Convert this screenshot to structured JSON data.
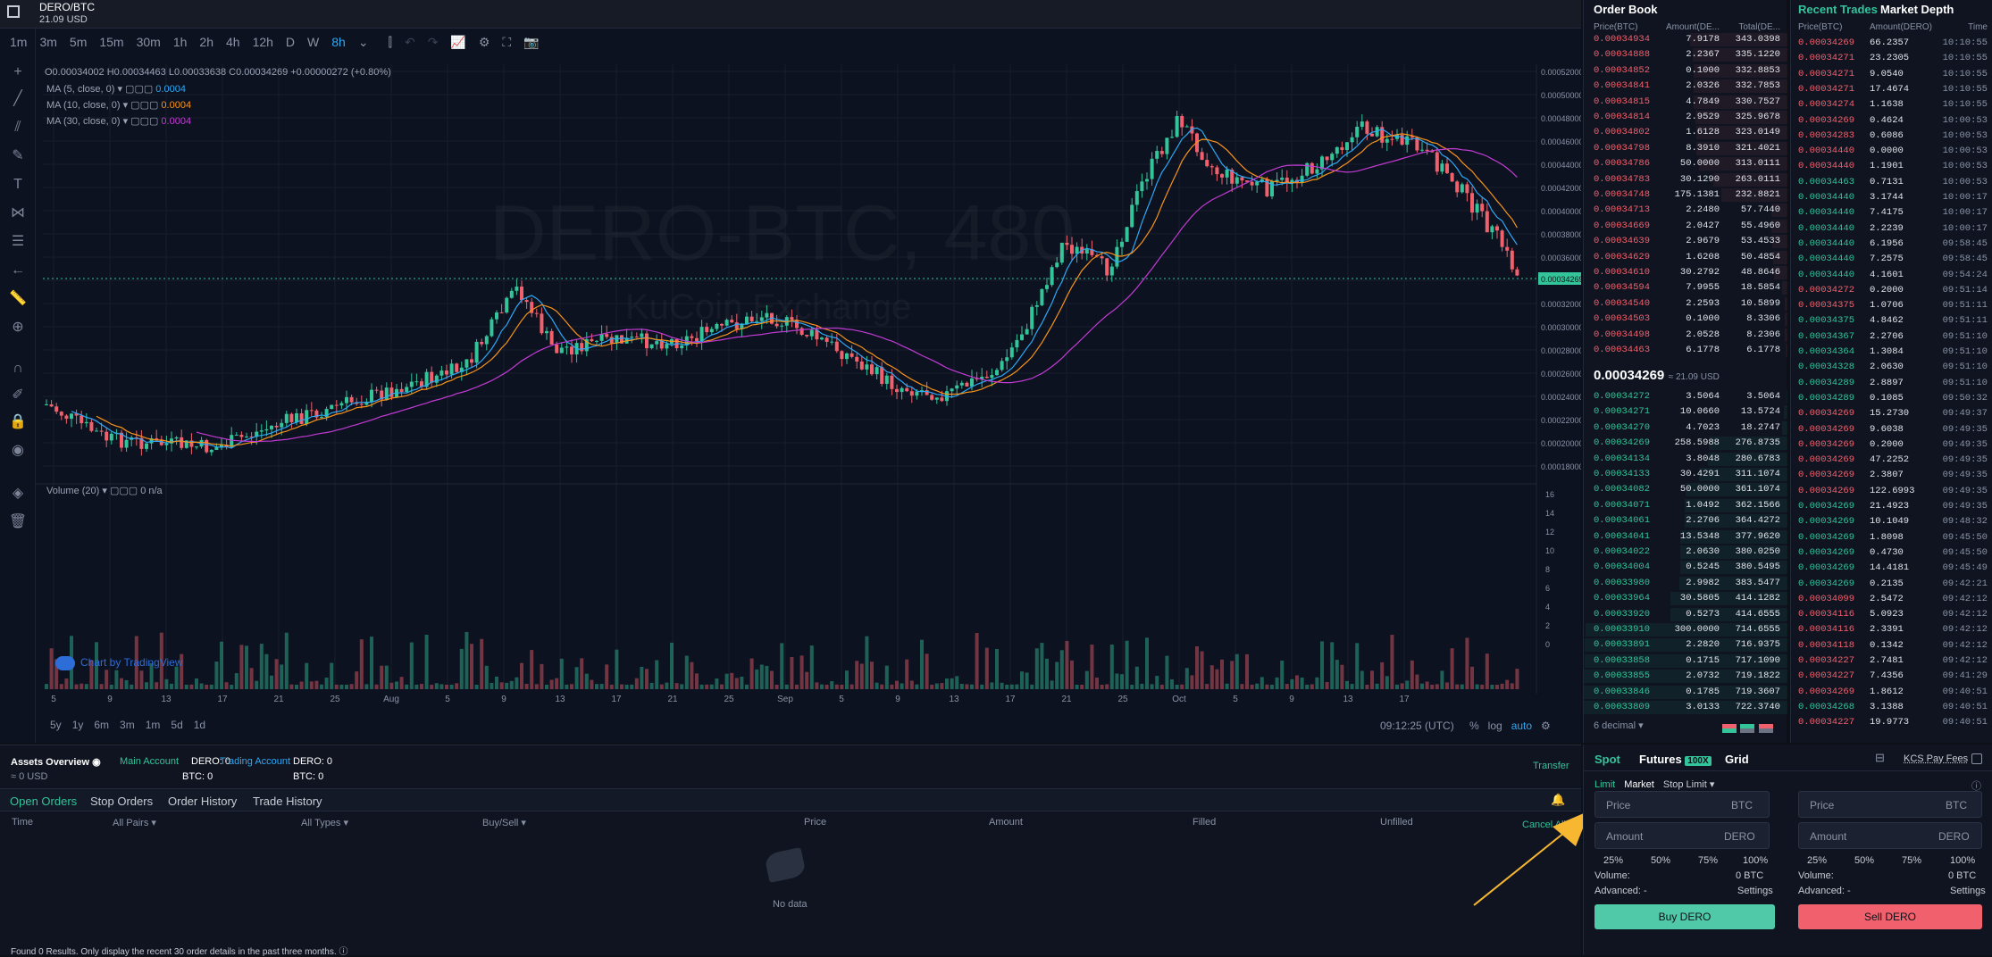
{
  "top": {
    "pair": "DERO/BTC",
    "price_usd": "21.09 USD"
  },
  "timeframes": [
    "1m",
    "3m",
    "5m",
    "15m",
    "30m",
    "1h",
    "2h",
    "4h",
    "12h",
    "D",
    "W",
    "8h"
  ],
  "active_tf": "8h",
  "legend": {
    "ohlc": "O0.00034002  H0.00034463  L0.00033638  C0.00034269  +0.00000272 (+0.80%)",
    "ma5_label": "MA (5, close, 0)",
    "ma5_val": "0.0004",
    "ma10_label": "MA (10, close, 0)",
    "ma10_val": "0.0004",
    "ma30_label": "MA (30, close, 0)",
    "ma30_val": "0.0004",
    "volume_label": "Volume (20)",
    "volume_val": "0  n/a"
  },
  "watermark": {
    "main": "DERO-BTC, 480",
    "sub": "KuCoin Exchange"
  },
  "price_axis": [
    "0.00052000",
    "0.00050000",
    "0.00048000",
    "0.00046000",
    "0.00044000",
    "0.00042000",
    "0.00040000",
    "0.00038000",
    "0.00036000",
    "0.00034269",
    "0.00032000",
    "0.00030000",
    "0.00028000",
    "0.00026000",
    "0.00024000",
    "0.00022000",
    "0.00020000",
    "0.00018000"
  ],
  "vol_axis": [
    "16",
    "14",
    "12",
    "10",
    "8",
    "6",
    "4",
    "2",
    "0"
  ],
  "date_axis": [
    "5",
    "9",
    "13",
    "17",
    "21",
    "25",
    "Aug",
    "5",
    "9",
    "13",
    "17",
    "21",
    "25",
    "Sep",
    "5",
    "9",
    "13",
    "17",
    "21",
    "25",
    "Oct",
    "5",
    "9",
    "13",
    "17"
  ],
  "current_price_tag": "0.00034269",
  "tradingview": "Chart by TradingView",
  "range_btns": [
    "5y",
    "1y",
    "6m",
    "3m",
    "1m",
    "5d",
    "1d"
  ],
  "time_readout": "09:12:25 (UTC)",
  "scale_opts": [
    "%",
    "log",
    "auto"
  ],
  "orderbook": {
    "title": "Order Book",
    "cols": [
      "Price(BTC)",
      "Amount(DE...",
      "Total(DE..."
    ],
    "asks": [
      [
        "0.00034934",
        "7.9178",
        "343.0398"
      ],
      [
        "0.00034888",
        "2.2367",
        "335.1220"
      ],
      [
        "0.00034852",
        "0.1000",
        "332.8853"
      ],
      [
        "0.00034841",
        "2.0326",
        "332.7853"
      ],
      [
        "0.00034815",
        "4.7849",
        "330.7527"
      ],
      [
        "0.00034814",
        "2.9529",
        "325.9678"
      ],
      [
        "0.00034802",
        "1.6128",
        "323.0149"
      ],
      [
        "0.00034798",
        "8.3910",
        "321.4021"
      ],
      [
        "0.00034786",
        "50.0000",
        "313.0111"
      ],
      [
        "0.00034783",
        "30.1290",
        "263.0111"
      ],
      [
        "0.00034748",
        "175.1381",
        "232.8821"
      ],
      [
        "0.00034713",
        "2.2480",
        "57.7440"
      ],
      [
        "0.00034669",
        "2.0427",
        "55.4960"
      ],
      [
        "0.00034639",
        "2.9679",
        "53.4533"
      ],
      [
        "0.00034629",
        "1.6208",
        "50.4854"
      ],
      [
        "0.00034610",
        "30.2792",
        "48.8646"
      ],
      [
        "0.00034594",
        "7.9955",
        "18.5854"
      ],
      [
        "0.00034540",
        "2.2593",
        "10.5899"
      ],
      [
        "0.00034503",
        "0.1000",
        "8.3306"
      ],
      [
        "0.00034498",
        "2.0528",
        "8.2306"
      ],
      [
        "0.00034463",
        "6.1778",
        "6.1778"
      ]
    ],
    "mid_price": "0.00034269",
    "mid_usd": "≈ 21.09 USD",
    "bids": [
      [
        "0.00034272",
        "3.5064",
        "3.5064"
      ],
      [
        "0.00034271",
        "10.0660",
        "13.5724"
      ],
      [
        "0.00034270",
        "4.7023",
        "18.2747"
      ],
      [
        "0.00034269",
        "258.5988",
        "276.8735"
      ],
      [
        "0.00034134",
        "3.8048",
        "280.6783"
      ],
      [
        "0.00034133",
        "30.4291",
        "311.1074"
      ],
      [
        "0.00034082",
        "50.0000",
        "361.1074"
      ],
      [
        "0.00034071",
        "1.0492",
        "362.1566"
      ],
      [
        "0.00034061",
        "2.2706",
        "364.4272"
      ],
      [
        "0.00034041",
        "13.5348",
        "377.9620"
      ],
      [
        "0.00034022",
        "2.0630",
        "380.0250"
      ],
      [
        "0.00034004",
        "0.5245",
        "380.5495"
      ],
      [
        "0.00033980",
        "2.9982",
        "383.5477"
      ],
      [
        "0.00033964",
        "30.5805",
        "414.1282"
      ],
      [
        "0.00033920",
        "0.5273",
        "414.6555"
      ],
      [
        "0.00033910",
        "300.0000",
        "714.6555"
      ],
      [
        "0.00033891",
        "2.2820",
        "716.9375"
      ],
      [
        "0.00033858",
        "0.1715",
        "717.1090"
      ],
      [
        "0.00033855",
        "2.0732",
        "719.1822"
      ],
      [
        "0.00033846",
        "0.1785",
        "719.3607"
      ],
      [
        "0.00033809",
        "3.0133",
        "722.3740"
      ]
    ],
    "decimal": "6 decimal"
  },
  "recent": {
    "tab1": "Recent Trades",
    "tab2": "Market Depth",
    "cols": [
      "Price(BTC)",
      "Amount(DERO)",
      "Time"
    ],
    "trades": [
      [
        "0.00034269",
        "66.2357",
        "10:10:55",
        "red"
      ],
      [
        "0.00034271",
        "23.2305",
        "10:10:55",
        "red"
      ],
      [
        "0.00034271",
        "9.0540",
        "10:10:55",
        "red"
      ],
      [
        "0.00034271",
        "17.4674",
        "10:10:55",
        "red"
      ],
      [
        "0.00034274",
        "1.1638",
        "10:10:55",
        "red"
      ],
      [
        "0.00034269",
        "0.4624",
        "10:00:53",
        "red"
      ],
      [
        "0.00034283",
        "0.6086",
        "10:00:53",
        "red"
      ],
      [
        "0.00034440",
        "0.0000",
        "10:00:53",
        "red"
      ],
      [
        "0.00034440",
        "1.1901",
        "10:00:53",
        "red"
      ],
      [
        "0.00034463",
        "0.7131",
        "10:00:53",
        "green"
      ],
      [
        "0.00034440",
        "3.1744",
        "10:00:17",
        "green"
      ],
      [
        "0.00034440",
        "7.4175",
        "10:00:17",
        "green"
      ],
      [
        "0.00034440",
        "2.2239",
        "10:00:17",
        "green"
      ],
      [
        "0.00034440",
        "6.1956",
        "09:58:45",
        "green"
      ],
      [
        "0.00034440",
        "7.2575",
        "09:58:45",
        "green"
      ],
      [
        "0.00034440",
        "4.1601",
        "09:54:24",
        "green"
      ],
      [
        "0.00034272",
        "0.2000",
        "09:51:14",
        "red"
      ],
      [
        "0.00034375",
        "1.0706",
        "09:51:11",
        "red"
      ],
      [
        "0.00034375",
        "4.8462",
        "09:51:11",
        "green"
      ],
      [
        "0.00034367",
        "2.2706",
        "09:51:10",
        "green"
      ],
      [
        "0.00034364",
        "1.3084",
        "09:51:10",
        "green"
      ],
      [
        "0.00034328",
        "2.0630",
        "09:51:10",
        "green"
      ],
      [
        "0.00034289",
        "2.8897",
        "09:51:10",
        "green"
      ],
      [
        "0.00034289",
        "0.1085",
        "09:50:32",
        "green"
      ],
      [
        "0.00034269",
        "15.2730",
        "09:49:37",
        "red"
      ],
      [
        "0.00034269",
        "9.6038",
        "09:49:35",
        "red"
      ],
      [
        "0.00034269",
        "0.2000",
        "09:49:35",
        "red"
      ],
      [
        "0.00034269",
        "47.2252",
        "09:49:35",
        "red"
      ],
      [
        "0.00034269",
        "2.3807",
        "09:49:35",
        "red"
      ],
      [
        "0.00034269",
        "122.6993",
        "09:49:35",
        "red"
      ],
      [
        "0.00034269",
        "21.4923",
        "09:49:35",
        "green"
      ],
      [
        "0.00034269",
        "10.1049",
        "09:48:32",
        "green"
      ],
      [
        "0.00034269",
        "1.8098",
        "09:45:50",
        "green"
      ],
      [
        "0.00034269",
        "0.4730",
        "09:45:50",
        "green"
      ],
      [
        "0.00034269",
        "14.4181",
        "09:45:49",
        "green"
      ],
      [
        "0.00034269",
        "0.2135",
        "09:42:21",
        "green"
      ],
      [
        "0.00034099",
        "2.5472",
        "09:42:12",
        "red"
      ],
      [
        "0.00034116",
        "5.0923",
        "09:42:12",
        "red"
      ],
      [
        "0.00034116",
        "2.3391",
        "09:42:12",
        "red"
      ],
      [
        "0.00034118",
        "0.1342",
        "09:42:12",
        "red"
      ],
      [
        "0.00034227",
        "2.7481",
        "09:42:12",
        "red"
      ],
      [
        "0.00034227",
        "7.4356",
        "09:41:29",
        "red"
      ],
      [
        "0.00034269",
        "1.8612",
        "09:40:51",
        "red"
      ],
      [
        "0.00034268",
        "3.1388",
        "09:40:51",
        "green"
      ],
      [
        "0.00034227",
        "19.9773",
        "09:40:51",
        "red"
      ]
    ]
  },
  "assets": {
    "title": "Assets Overview",
    "total": "≈ 0 USD",
    "main_account": "Main Account",
    "main_dero": "DERO: 0",
    "main_btc": "BTC: 0",
    "trading_account": "Trading Account",
    "trading_dero": "DERO: 0",
    "trading_btc": "BTC: 0",
    "transfer": "Transfer"
  },
  "order_tabs": [
    "Open Orders",
    "Stop Orders",
    "Order History",
    "Trade History"
  ],
  "order_cols": {
    "time": "Time",
    "pairs": "All Pairs",
    "types": "All Types",
    "side": "Buy/Sell",
    "price": "Price",
    "amount": "Amount",
    "filled": "Filled",
    "unfilled": "Unfilled",
    "cancel": "Cancel All"
  },
  "no_data": "No data",
  "footer_note": "Found 0 Results. Only display the recent 30 order details in the past three months.",
  "trade": {
    "tabs": [
      "Spot",
      "Futures",
      "Grid"
    ],
    "futures_badge": "100X",
    "kcs": "KCS Pay Fees",
    "types": [
      "Limit",
      "Market",
      "Stop Limit"
    ],
    "price_ph": "Price",
    "price_unit": "BTC",
    "amount_ph": "Amount",
    "amount_unit": "DERO",
    "pcts": [
      "25%",
      "50%",
      "75%",
      "100%"
    ],
    "volume": "Volume:",
    "volume_val": "0 BTC",
    "advanced": "Advanced: -",
    "settings": "Settings",
    "buy": "Buy DERO",
    "sell": "Sell DERO"
  }
}
